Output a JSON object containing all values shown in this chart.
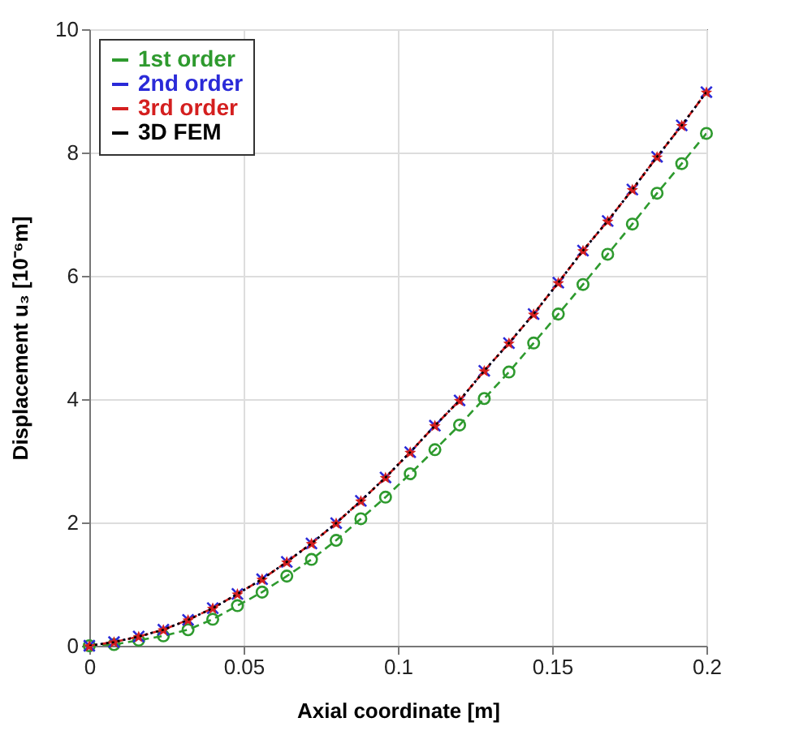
{
  "chart_data": {
    "type": "line",
    "xlabel": "Axial coordinate [m]",
    "ylabel": "Displacement u₃ [10⁻⁶m]",
    "x": [
      0,
      0.008,
      0.016,
      0.024,
      0.032,
      0.04,
      0.048,
      0.056,
      0.064,
      0.072,
      0.08,
      0.088,
      0.096,
      0.104,
      0.112,
      0.12,
      0.128,
      0.136,
      0.144,
      0.152,
      0.16,
      0.168,
      0.176,
      0.184,
      0.192,
      0.2
    ],
    "series": [
      {
        "name": "1st order",
        "color": "#2e9a2e",
        "marker": "circle",
        "line_style": "dashed",
        "values": [
          0,
          0.02,
          0.09,
          0.16,
          0.26,
          0.43,
          0.65,
          0.87,
          1.13,
          1.4,
          1.71,
          2.06,
          2.41,
          2.79,
          3.18,
          3.58,
          4.01,
          4.44,
          4.91,
          5.38,
          5.86,
          6.35,
          6.84,
          7.34,
          7.82,
          8.31
        ]
      },
      {
        "name": "2nd order",
        "color": "#2a2ad8",
        "marker": "cross",
        "line_style": "dotted",
        "values": [
          0,
          0.06,
          0.15,
          0.26,
          0.42,
          0.61,
          0.84,
          1.08,
          1.36,
          1.66,
          1.99,
          2.35,
          2.73,
          3.14,
          3.57,
          3.98,
          4.46,
          4.91,
          5.38,
          5.89,
          6.41,
          6.89,
          7.4,
          7.93,
          8.44,
          8.98
        ]
      },
      {
        "name": "3rd order",
        "color": "#d41f1f",
        "marker": "star",
        "line_style": "dashed",
        "values": [
          0,
          0.06,
          0.15,
          0.26,
          0.42,
          0.61,
          0.84,
          1.08,
          1.36,
          1.66,
          1.99,
          2.35,
          2.73,
          3.14,
          3.57,
          3.98,
          4.46,
          4.91,
          5.38,
          5.89,
          6.41,
          6.89,
          7.4,
          7.93,
          8.44,
          8.98
        ]
      },
      {
        "name": "3D FEM",
        "color": "#000000",
        "marker": "none",
        "line_style": "dotted",
        "values": [
          0,
          0.06,
          0.15,
          0.26,
          0.42,
          0.61,
          0.84,
          1.08,
          1.36,
          1.66,
          1.99,
          2.35,
          2.73,
          3.14,
          3.57,
          3.98,
          4.46,
          4.91,
          5.38,
          5.89,
          6.41,
          6.89,
          7.4,
          7.93,
          8.44,
          8.98
        ]
      }
    ],
    "xlim": [
      0,
      0.2
    ],
    "xticks": [
      0,
      0.05,
      0.1,
      0.15,
      0.2
    ],
    "ylim": [
      0,
      10
    ],
    "yticks": [
      0,
      2,
      4,
      6,
      8,
      10
    ],
    "grid": true,
    "legend": "top left"
  }
}
